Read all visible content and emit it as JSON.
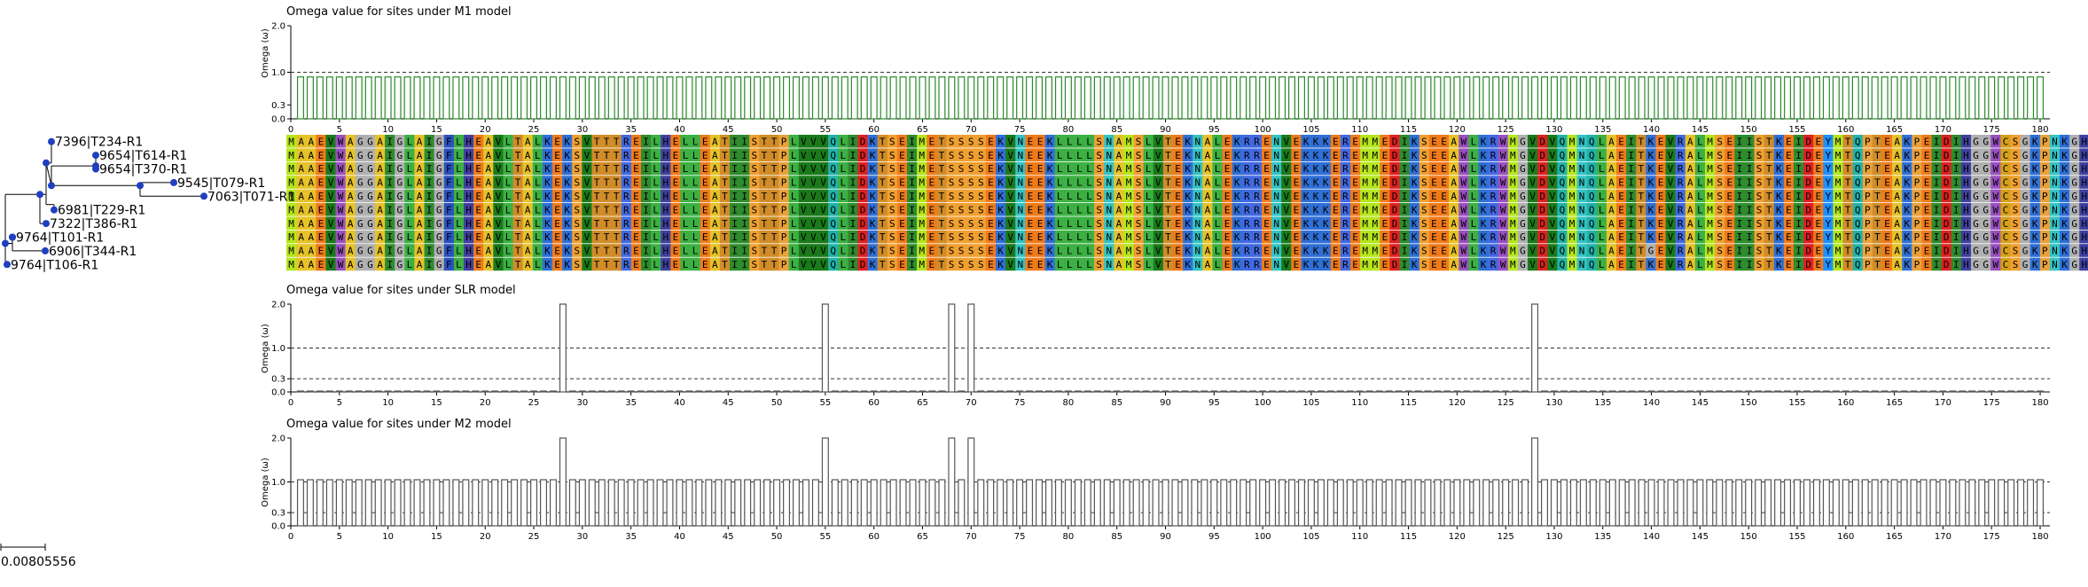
{
  "panels": {
    "m1": {
      "title": "Omega value for sites under M1 model",
      "ylabel": "Omega (ω)"
    },
    "slr": {
      "title": "Omega value for sites under SLR model",
      "ylabel": "Omega (ω)"
    },
    "m2": {
      "title": "Omega value for sites under M2 model",
      "ylabel": "Omega (ω)"
    }
  },
  "tree": {
    "taxa": [
      "7396|T234-R1",
      "9654|T614-R1",
      "9654|T370-R1",
      "9545|T079-R1",
      "7063|T071-R1",
      "6981|T229-R1",
      "7322|T386-R1",
      "9764|T101-R1",
      "6906|T344-R1",
      "9764|T106-R1"
    ],
    "scale_label": "0.00805556",
    "node_color": "#1f3fbf"
  },
  "alignment": {
    "colors": {
      "A": "#e6c229",
      "C": "#d4a017",
      "D": "#e02020",
      "E": "#f07a1a",
      "F": "#2a52be",
      "G": "#b0b0b0",
      "H": "#4040a0",
      "I": "#2e8b2e",
      "K": "#2f6fd6",
      "L": "#3cb043",
      "M": "#b5e61d",
      "N": "#33c3c3",
      "P": "#e9a13b",
      "Q": "#20b2aa",
      "R": "#4169e1",
      "S": "#f0a030",
      "T": "#d08c28",
      "V": "#1a7a1a",
      "W": "#9a50c0",
      "Y": "#1e90ff",
      "-": "#ffffff"
    },
    "sequences": [
      "MAAEVWAGGAIGLAIGFLHEAVLTALKEKSVTTTREILHELLEATIISTTPLVVVQLIDKTSEIMETSSSSEKVNEEKLLLLSNAMSLVTEKNALEKRRENVEKKKEREMMEDIKSEEAWLKRWMGVDVQMNQLAEITKEVRALMSEIISTKEIDEYMTQPTEAKPEIDIHGGWCSGKPNKGHAIRETTHKDES",
      "MAAEVWAGGAIGLAIGFLHEAVLTALKEKSVTTTREILHELLEATIISTTPLVVVQLIDKTSEIMETSSSSEKVNEEKLLLLSNAMSLVTEKNALEKRRENVEKKKEREMMEDIKSEEAWLKRWMGVDVQMNQLAEITKEVRALMSEIISTKEIDEYMTQPTEAKPEIDIHGGWCSGKPNKGHAIRETTHKDES",
      "MAAEVWAGGAIGLAIGFLHEAVLTALKEKSVTTTREILHELLEATIISTTPLVVVQLIDKTSEIMETSSSSEKVNEEKLLLLSNAMSLVTEKNALEKRRENVEKKKEREMMEDIKSEEAWLKRWMGVDVQMNQLAEITKEVRALMSEIISTKEIDEYMTQPTEAKPEIDIHGGWCSGKPNKGHAIRETTHKDES",
      "MAAEVWAGGAIGLAIGFLHEAVLTALKEKSVTTTREILHELLEATIISTTPLVVVQLIDKTSEIMETSSSSEKVNEEKLLLLSNAMSLVTEKNALEKRRENVEKKKEREMMEDIKSEEAWLKRWMGVDVQMNQLAEITKEVRALMSEIISTKEIDEYMTQPTEAKPEIDIHGGWCSGKPNKGHAIRETTHKDES",
      "MAAEVWAGGAIGLAIGFLHEAVLTALKEKSVTTTREILHELLEATIISTTPLVVVQLIDKTSEIMETSSSSEKVNEEKLLLLSNAMSLVTEKNALEKRRENVEKKKEREMMEDIKSEEAWLKRWMGVDVQMNQLAEITKEVRALMSEIISTKEIDEYMTQPTEAKPEIDIHGGWCSGKPNKGHAIRETTHKDES",
      "MAAEVWAGGAIGLAIGFLHEAVLTALKEKSVTTTREILHELLEATIISTTPLVVVQLIDKTSEIMETSSSSEKVNEEKLLLLSNAMSLVTEKNALEKRRENVEKKKEREMMEDIKSEEAWLKRWMGVDVQMNQLAEITKEVRALMSEIISTKEIDEYMTQPTEAKPEIDIHGGWCSGKPNKGHAIRETTHKDES",
      "MAAEVWAGGAIGLAIGFLHEAVLTALKEKSVTTTREILHELLEATIISTTPLVVVQLIDKTSEIMETSSSSEKVNEEKLLLLSNAMSLVTEKNALEKRRENVEKKKEREMMEDIKSEEAWLKRWMGVDVQMNQLAEITKEVRALMSEIISTKEIDEYMTQPTEAKPEIDIHGGWCSGKPNKGHAIRETTHKDES",
      "MAAEVWAGGAIGLAIGFLHEAVLTALKEKSVTTTREILHELLEATIISTTPLVVVQLIDKTSEIMETSSSSEKVNEEKLLLLSNAMSLVTEKNALEKRRENVEKKKEREMMEDIKSEEAWLKRWMGVDVQMNQLAEITKEVRALMSEIISTKEIDEYMTQPTEAKPEIDIHGGWCSGKPNKGHAIRETTHKDES",
      "MAAEVWAGGAIGLAIGFLHEAVLTALKEKSVTTTREILHELLEATIISTTPLVVVQLIDKTSEIMETSSSSEKVNEEKLLLLSNAMSLVTEKNALEKRRENVEKKKEREMMEDIKSEEAWLKRWMGVDVQMNQLAEITGEVRALMSEIISTKEIDEYMTQPTEAKPEIDIHGGWCSGKPNKGHAIRETTHKDES",
      "MAAEVWAGGAIGLAIGFLHEAVLTALKEKSVTTTREILHELLEATIISTTPLVVVQLIDKTSEIMETSSSSEKVNEEKLLLLSNAMSLVTEKNALEKRRENVEKKKEREMMEDIKSEEAWLKRWMGVDVQMNQLAEITKEVRALMSEIISTKEIDEYMTQPTEAKPEIDIHGGWCSGKPNKGHAIRETTHKDES"
    ]
  },
  "chart_data": [
    {
      "type": "bar",
      "title": "Omega value for sites under M1 model",
      "ylabel": "Omega (ω)",
      "ylim": [
        0,
        2.0
      ],
      "yticks": [
        0.0,
        0.3,
        1.0,
        2.0
      ],
      "dashed_lines": [
        1.0
      ],
      "xticks": [
        0,
        5,
        10,
        15,
        20,
        25,
        30,
        35,
        40,
        45,
        50,
        55,
        60,
        65,
        70,
        75,
        80,
        85,
        90,
        95,
        100,
        105,
        110,
        115,
        120,
        125,
        130,
        135,
        140,
        145,
        150,
        155,
        160,
        165,
        170,
        175,
        180
      ],
      "xlim": [
        0,
        181
      ],
      "bar_color": "#2a8a2a",
      "sites": 180,
      "default_value": 0.9,
      "overrides": {}
    },
    {
      "type": "bar",
      "title": "Omega value for sites under SLR model",
      "ylabel": "Omega (ω)",
      "ylim": [
        0,
        2.0
      ],
      "yticks": [
        0.0,
        0.3,
        1.0,
        2.0
      ],
      "dashed_lines": [
        0.3,
        1.0
      ],
      "xticks": [
        0,
        5,
        10,
        15,
        20,
        25,
        30,
        35,
        40,
        45,
        50,
        55,
        60,
        65,
        70,
        75,
        80,
        85,
        90,
        95,
        100,
        105,
        110,
        115,
        120,
        125,
        130,
        135,
        140,
        145,
        150,
        155,
        160,
        165,
        170,
        175,
        180
      ],
      "xlim": [
        0,
        181
      ],
      "bar_color": "#555555",
      "sites": 180,
      "default_value": 0.02,
      "overrides": {
        "28": 2.0,
        "55": 2.0,
        "68": 2.0,
        "70": 2.0,
        "128": 2.0
      }
    },
    {
      "type": "bar",
      "title": "Omega value for sites under M2 model",
      "ylabel": "Omega (ω)",
      "ylim": [
        0,
        2.0
      ],
      "yticks": [
        0.0,
        0.3,
        1.0,
        2.0
      ],
      "dashed_lines": [
        0.3,
        1.0
      ],
      "xticks": [
        0,
        5,
        10,
        15,
        20,
        25,
        30,
        35,
        40,
        45,
        50,
        55,
        60,
        65,
        70,
        75,
        80,
        85,
        90,
        95,
        100,
        105,
        110,
        115,
        120,
        125,
        130,
        135,
        140,
        145,
        150,
        155,
        160,
        165,
        170,
        175,
        180
      ],
      "xlim": [
        0,
        181
      ],
      "bar_color": "#555555",
      "sites": 180,
      "default_value": 1.05,
      "overrides": {
        "28": 2.0,
        "55": 2.0,
        "68": 2.0,
        "70": 2.0,
        "128": 2.0
      }
    }
  ]
}
